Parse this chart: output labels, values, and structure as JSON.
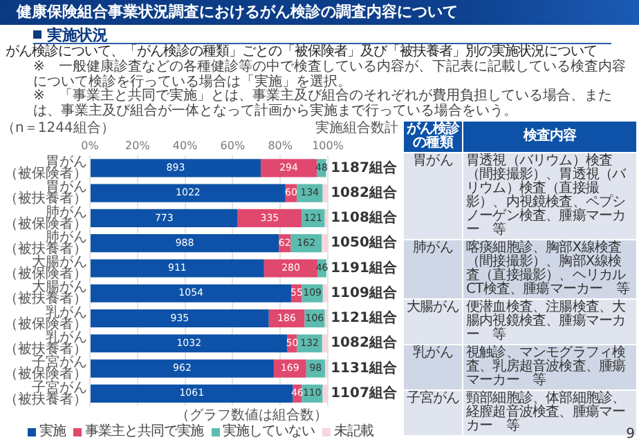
{
  "chart_data": [
    {
      "type": "bar",
      "orientation": "horizontal",
      "stacked": true,
      "title": "健康保険組合事業状況調査におけるがん検診の調査内容について",
      "subtitle": "実施状況",
      "categories": [
        "胃がん（被保険者）",
        "胃がん（被扶養者）",
        "肺がん（被保険者）",
        "肺がん（被扶養者）",
        "大腸がん（被保険者）",
        "大腸がん（被扶養者）",
        "乳がん（被保険者）",
        "乳がん（被扶養者）",
        "子宮がん（被保険者）",
        "子宮がん（被扶養者）"
      ],
      "series": [
        {
          "name": "実施",
          "color": "#0d52a8",
          "values": [
            71.8,
            82.2,
            62.1,
            79.4,
            73.2,
            84.7,
            75.2,
            83.0,
            77.3,
            85.3
          ]
        },
        {
          "name": "事業主と共同で実施",
          "color": "#e0486e",
          "values": [
            23.6,
            4.8,
            26.9,
            5.0,
            22.5,
            4.4,
            15.0,
            4.0,
            13.6,
            3.7
          ]
        },
        {
          "name": "実施していない",
          "color": "#5dbcb0",
          "values": [
            3.9,
            10.8,
            9.7,
            13.0,
            3.7,
            8.8,
            8.5,
            10.6,
            7.9,
            8.8
          ]
        },
        {
          "name": "未記載",
          "color": "#f8d6de",
          "values": [
            null,
            2.3,
            1.2,
            2.6,
            null,
            2.1,
            1.4,
            2.4,
            1.2,
            2.2
          ]
        }
      ],
      "xlim": [
        0,
        100
      ],
      "xticks": [
        {
          "value": 0,
          "label": "0%"
        },
        {
          "value": 20,
          "label": "20%"
        },
        {
          "value": 40,
          "label": "40%"
        },
        {
          "value": 60,
          "label": "60%"
        },
        {
          "value": 80,
          "label": "80%"
        },
        {
          "value": 100,
          "label": "100%"
        }
      ],
      "grid": "x",
      "legend": "bottom",
      "annotations": [
        "がん検診について、「がん検診の種類」ごとの「被保険者」及び「被扶養者」別の実施状況について",
        "※　一般健康診査などの各種健診等の中で検査している内容が、下記表に記載している検査内容について検診を行っている場合は「実施」を選択。",
        "※　「事業主と共同で実施」とは、事業主及び組合のそれぞれが費用負担している場合、または、事業主及び組合が一体となって計画から実施まで行っている場合をいう。",
        "（n＝1244組合）",
        "（グラフ数値は組合数）",
        "実施組合数計",
        "1187組合",
        "1082組合",
        "1108組合",
        "1050組合",
        "1191組合",
        "1109組合",
        "1121組合",
        "1082組合",
        "1131組合",
        "1107組合",
        "893",
        "1022",
        "773",
        "988",
        "911",
        "1054",
        "935",
        "1032",
        "962",
        "1061",
        "294",
        "60",
        "335",
        "62",
        "280",
        "55",
        "186",
        "50",
        "169",
        "46",
        "48",
        "134",
        "121",
        "162",
        "46",
        "109",
        "106",
        "132",
        "98",
        "110"
      ]
    },
    {
      "type": "other",
      "annotations": [
        "がん検診の種類",
        "検査内容",
        "胃がん",
        "胃透視（バリウム）検査（間接撮影）、胃透視（バリウム）検査（直接撮影）、内視鏡検査、ペプシノーゲン検査、腫瘍マーカー　等",
        "肺がん",
        "喀痰細胞診、胸部X線検査（間接撮影）、胸部X線検査（直接撮影）、ヘリカルCT検査、腫瘍マーカー　等",
        "大腸がん",
        "便潜血検査、注腸検査、大腸内視鏡検査、腫瘍マーカー　等",
        "乳がん",
        "視触診、マンモグラフィ検査、乳房超音波検査、腫瘍マーカー　等",
        "子宮がん",
        "頸部細胞診、体部細胞診、経膣超音波検査、腫瘍マーカー　等",
        "9"
      ]
    }
  ]
}
